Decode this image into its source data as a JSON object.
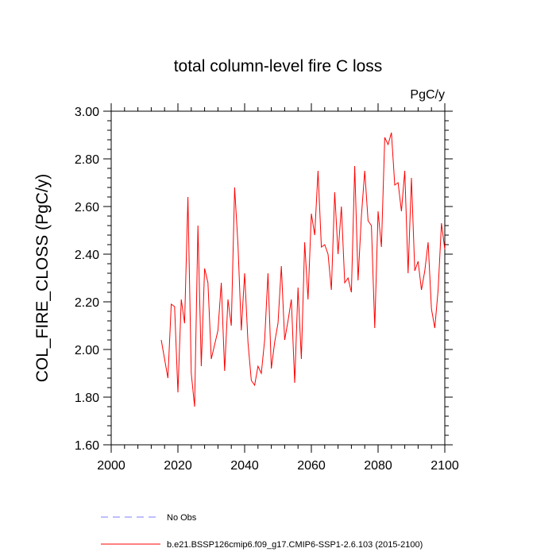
{
  "chart_data": {
    "type": "line",
    "title": "total column-level fire C loss",
    "units": "PgC/y",
    "xlabel": "",
    "ylabel": "COL_FIRE_CLOSS  (PgC/y)",
    "xlim": [
      2000,
      2100
    ],
    "ylim": [
      1.6,
      3.0
    ],
    "x_ticks": [
      2000,
      2020,
      2040,
      2060,
      2080,
      2100
    ],
    "x_tick_labels": [
      "2000",
      "2020",
      "2040",
      "2060",
      "2080",
      "2100"
    ],
    "y_ticks": [
      1.6,
      1.8,
      2.0,
      2.2,
      2.4,
      2.6,
      2.8,
      3.0
    ],
    "y_tick_labels": [
      "1.60",
      "1.80",
      "2.00",
      "2.20",
      "2.40",
      "2.60",
      "2.80",
      "3.00"
    ],
    "series": [
      {
        "name": "b.e21.BSSP126cmip6.f09_g17.CMIP6-SSP1-2.6.103 (2015-2100)",
        "color": "#ff0000",
        "x": [
          2015,
          2016,
          2017,
          2018,
          2019,
          2020,
          2021,
          2022,
          2023,
          2024,
          2025,
          2026,
          2027,
          2028,
          2029,
          2030,
          2031,
          2032,
          2033,
          2034,
          2035,
          2036,
          2037,
          2038,
          2039,
          2040,
          2041,
          2042,
          2043,
          2044,
          2045,
          2046,
          2047,
          2048,
          2049,
          2050,
          2051,
          2052,
          2053,
          2054,
          2055,
          2056,
          2057,
          2058,
          2059,
          2060,
          2061,
          2062,
          2063,
          2064,
          2065,
          2066,
          2067,
          2068,
          2069,
          2070,
          2071,
          2072,
          2073,
          2074,
          2075,
          2076,
          2077,
          2078,
          2079,
          2080,
          2081,
          2082,
          2083,
          2084,
          2085,
          2086,
          2087,
          2088,
          2089,
          2090,
          2091,
          2092,
          2093,
          2094,
          2095,
          2096,
          2097,
          2098,
          2099,
          2100
        ],
        "values": [
          2.04,
          1.96,
          1.88,
          2.19,
          2.18,
          1.82,
          2.21,
          2.11,
          2.64,
          1.9,
          1.76,
          2.52,
          1.93,
          2.34,
          2.28,
          1.96,
          2.02,
          2.08,
          2.28,
          1.91,
          2.21,
          2.1,
          2.68,
          2.44,
          2.08,
          2.32,
          2.03,
          1.87,
          1.85,
          1.93,
          1.9,
          2.04,
          2.32,
          1.92,
          2.03,
          2.11,
          2.35,
          2.04,
          2.12,
          2.21,
          1.86,
          2.26,
          1.96,
          2.45,
          2.21,
          2.57,
          2.48,
          2.75,
          2.43,
          2.44,
          2.4,
          2.25,
          2.66,
          2.4,
          2.6,
          2.28,
          2.3,
          2.24,
          2.77,
          2.29,
          2.56,
          2.75,
          2.54,
          2.52,
          2.09,
          2.58,
          2.43,
          2.89,
          2.86,
          2.91,
          2.69,
          2.7,
          2.58,
          2.75,
          2.32,
          2.72,
          2.33,
          2.37,
          2.25,
          2.33,
          2.45,
          2.17,
          2.09,
          2.25,
          2.53,
          2.42
        ]
      },
      {
        "name": "No Obs",
        "color": "#7f7fff",
        "style": "dashed",
        "x": [],
        "values": []
      }
    ],
    "legend_position": "bottom-left"
  }
}
